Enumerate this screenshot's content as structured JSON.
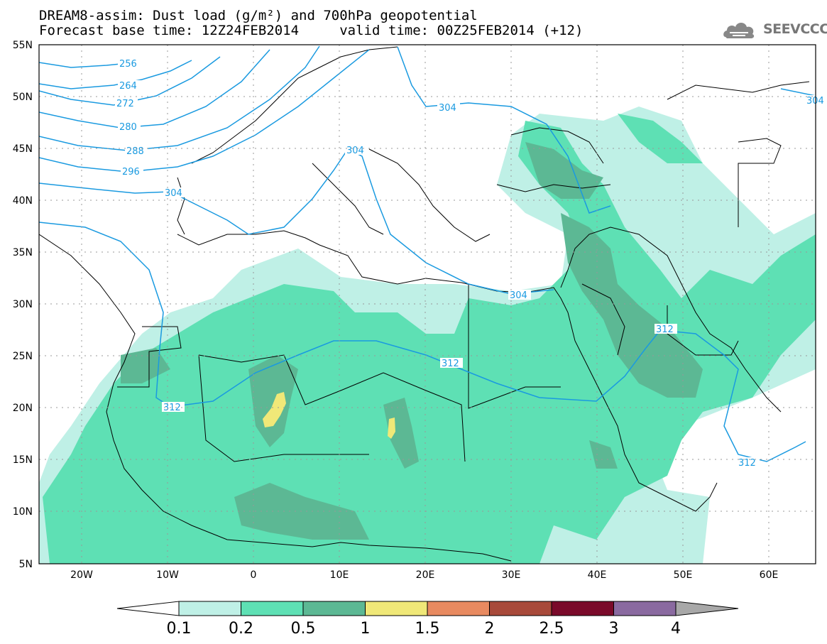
{
  "title_line1": "DREAM8-assim: Dust load (g/m²) and 700hPa geopotential",
  "title_line2": "Forecast base time: 12Z24FEB2014     valid time: 00Z25FEB2014 (+12)",
  "logo_text": "SEEVCCC",
  "map": {
    "lat_labels": [
      "55N",
      "50N",
      "45N",
      "40N",
      "35N",
      "30N",
      "25N",
      "20N",
      "15N",
      "10N",
      "5N"
    ],
    "lon_labels": [
      "20W",
      "10W",
      "0",
      "10E",
      "20E",
      "30E",
      "40E",
      "50E",
      "60E"
    ],
    "lat_range": [
      5,
      55
    ],
    "lon_range": [
      -25,
      65
    ]
  },
  "contour_labels": [
    "256",
    "264",
    "272",
    "280",
    "288",
    "296",
    "304",
    "304",
    "304",
    "304",
    "312",
    "312",
    "312",
    "312",
    "304"
  ],
  "colorbar": {
    "ticks": [
      "0.1",
      "0.2",
      "0.5",
      "1",
      "1.5",
      "2",
      "2.5",
      "3",
      "4"
    ],
    "colors": [
      "#ffffff",
      "#bff0e6",
      "#5ee0b4",
      "#5cb894",
      "#f0e878",
      "#e88a60",
      "#a84a3a",
      "#7a0a2a",
      "#8a6aa0",
      "#a8a8a8"
    ]
  }
}
